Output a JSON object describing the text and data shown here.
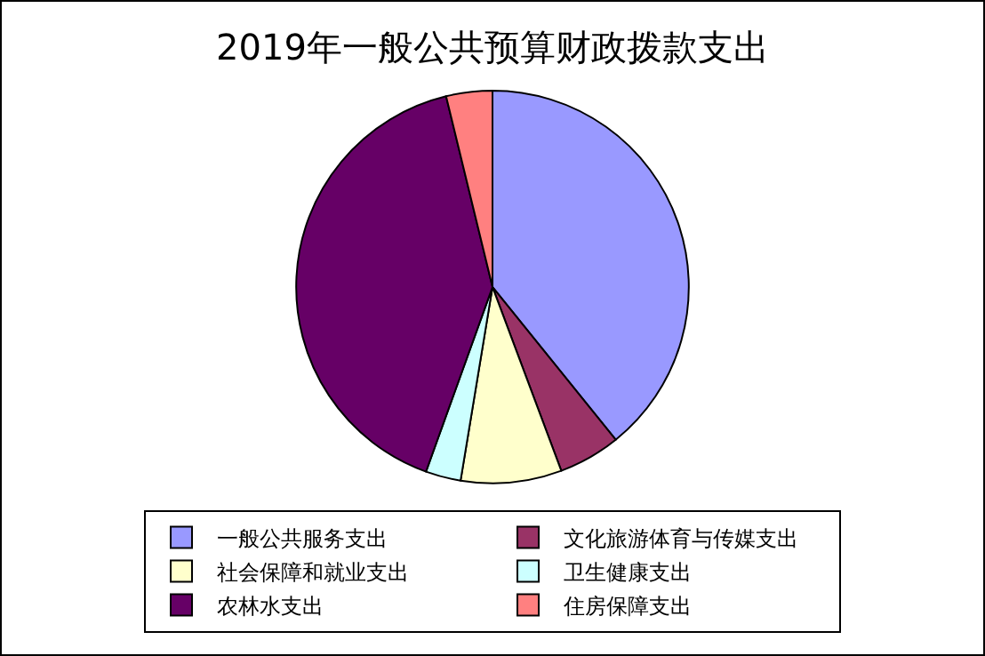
{
  "chart_data": {
    "type": "pie",
    "title": "2019年一般公共预算财政拨款支出",
    "categories": [
      "一般公共服务支出",
      "文化旅游体育与传媒支出",
      "社会保障和就业支出",
      "卫生健康支出",
      "农林水支出",
      "住房保障支出"
    ],
    "values": [
      39.2,
      5.1,
      8.3,
      2.9,
      40.7,
      3.8
    ],
    "colors": [
      "#9999ff",
      "#993366",
      "#ffffcc",
      "#ccffff",
      "#660066",
      "#ff8080"
    ],
    "legend": "bottom"
  }
}
